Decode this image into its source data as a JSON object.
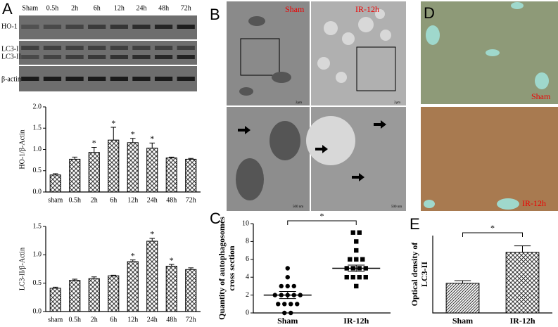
{
  "panel_letters": [
    "A",
    "B",
    "C",
    "D",
    "E"
  ],
  "blot": {
    "lanes": [
      "Sham",
      "0.5h",
      "2h",
      "6h",
      "12h",
      "24h",
      "48h",
      "72h"
    ],
    "rows": [
      "HO-1",
      "LC3-I",
      "LC3-II",
      "β-actin"
    ]
  },
  "micrographs": {
    "labels": [
      "Sham",
      "IR-12h"
    ],
    "scale_bars": [
      "2μm",
      "2μm",
      "500 nm",
      "500 nm"
    ]
  },
  "ihc": {
    "labels": [
      "Sham",
      "IR-12h"
    ]
  },
  "chart_data": [
    {
      "type": "bar",
      "ylabel": "HO-1/β-Actin",
      "categories": [
        "sham",
        "0.5h",
        "2h",
        "6h",
        "12h",
        "24h",
        "48h",
        "72h"
      ],
      "values": [
        0.4,
        0.77,
        0.93,
        1.22,
        1.16,
        1.03,
        0.8,
        0.77
      ],
      "errors": [
        0.03,
        0.05,
        0.12,
        0.3,
        0.1,
        0.12,
        0.02,
        0.02
      ],
      "annotations": [
        null,
        null,
        "*",
        "*",
        "*",
        "*",
        null,
        null
      ],
      "ylim": [
        0,
        2
      ],
      "yticks": [
        {
          "value": 0,
          "label": "0.0"
        },
        0.5,
        {
          "value": 1,
          "label": "1.0"
        },
        1.5,
        {
          "value": 2,
          "label": "2.0"
        }
      ]
    },
    {
      "type": "bar",
      "ylabel": "LC3-II/β-Actin",
      "categories": [
        "sham",
        "0.5h",
        "2h",
        "6h",
        "12h",
        "24h",
        "48h",
        "72h"
      ],
      "values": [
        0.41,
        0.55,
        0.58,
        0.63,
        0.88,
        1.24,
        0.8,
        0.74
      ],
      "errors": [
        0.02,
        0.02,
        0.03,
        0.01,
        0.03,
        0.05,
        0.03,
        0.03
      ],
      "annotations": [
        null,
        null,
        null,
        null,
        "*",
        "*",
        "*",
        null
      ],
      "ylim": [
        0,
        1.5
      ],
      "yticks": [
        {
          "value": 0,
          "label": "0.0"
        },
        0.5,
        {
          "value": 1,
          "label": "1.0"
        },
        1.5
      ]
    },
    {
      "type": "scatter",
      "ylabel_lines": [
        "Quantity of autophagosomes",
        "cross section"
      ],
      "categories": [
        "Sham",
        "IR-12h"
      ],
      "points": [
        [
          5,
          4,
          3,
          3,
          3,
          2,
          2,
          2,
          2,
          1,
          1,
          1,
          1,
          0,
          0,
          2
        ],
        [
          9,
          9,
          8,
          7,
          6,
          6,
          6,
          5,
          5,
          5,
          5,
          4,
          4,
          4,
          4,
          3
        ]
      ],
      "means": [
        2,
        5
      ],
      "errors": [
        0.4,
        0.35
      ],
      "significance": "*",
      "ylim": [
        0,
        10
      ],
      "yticks": [
        0,
        2,
        4,
        6,
        8,
        10
      ]
    },
    {
      "type": "bar",
      "ylabel_lines": [
        "Optical density of",
        "LC3-II"
      ],
      "categories": [
        "Sham",
        "IR-12h"
      ],
      "values": [
        0.23,
        0.47
      ],
      "errors": [
        0.02,
        0.05
      ],
      "significance": "*",
      "ylim": [
        0,
        0.6
      ]
    }
  ]
}
